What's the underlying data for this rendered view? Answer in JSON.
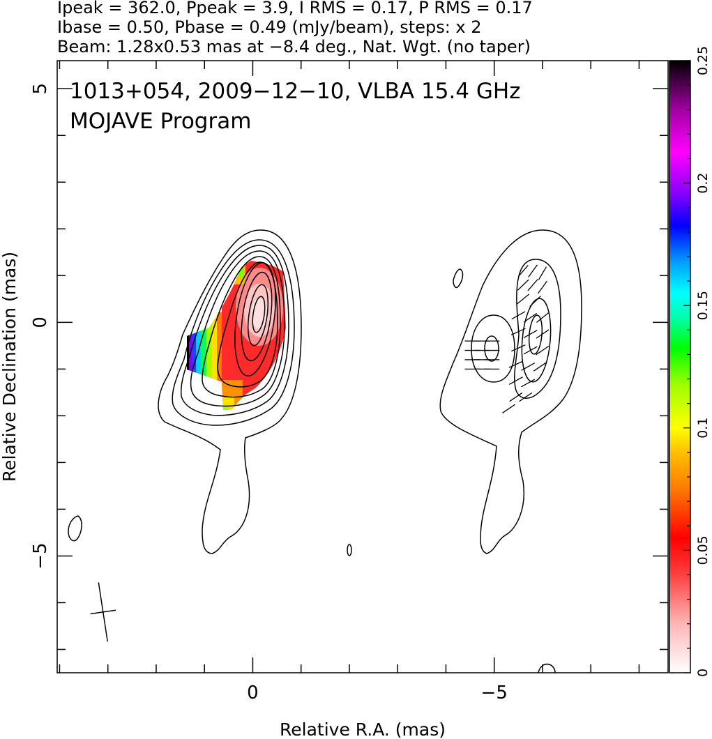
{
  "header": {
    "line1": "Ipeak = 362.0, Ppeak = 3.9, I RMS = 0.17, P RMS = 0.17",
    "line2": "Ibase = 0.50, Pbase = 0.49 (mJy/beam), steps: x 2",
    "line3": "Beam: 1.28x0.53 mas at −8.4 deg., Nat. Wgt. (no taper)"
  },
  "chart_data": {
    "type": "heatmap",
    "title": "1013+054, 2009−12−10, VLBA 15.4 GHz",
    "subtitle": "MOJAVE Program",
    "xlabel": "Relative R.A. (mas)",
    "ylabel": "Relative Declination (mas)",
    "xlim": [
      4.05,
      -8.6
    ],
    "ylim": [
      -7.5,
      5.6
    ],
    "x_ticks": [
      {
        "value": 0,
        "label": "0"
      },
      {
        "value": -5,
        "label": "−5"
      }
    ],
    "y_ticks": [
      {
        "value": 5,
        "label": "5"
      },
      {
        "value": 0,
        "label": "0"
      },
      {
        "value": -5,
        "label": "−5"
      }
    ],
    "grid": false,
    "legend": "none",
    "colorbar": {
      "range": [
        0,
        0.25
      ],
      "ticks": [
        {
          "value": 0,
          "label": "0"
        },
        {
          "value": 0.05,
          "label": "0.05"
        },
        {
          "value": 0.1,
          "label": "0.1"
        },
        {
          "value": 0.15,
          "label": "0.15"
        },
        {
          "value": 0.2,
          "label": "0.2"
        },
        {
          "value": 0.25,
          "label": "0.25"
        }
      ],
      "colors": [
        "#ffffff",
        "#ffb6b6",
        "#ff4040",
        "#ff0000",
        "#ff7a00",
        "#ffc000",
        "#ffff00",
        "#a0ff00",
        "#00ff00",
        "#00ffaa",
        "#00ffff",
        "#00a0ff",
        "#0000ff",
        "#8000ff",
        "#ff00ff",
        "#a000a0",
        "#000000"
      ]
    },
    "stokes_i_contours": {
      "base_mjy_per_beam": 0.5,
      "step_factor": 2,
      "peak_mjy_per_beam": 362.0,
      "core_center": [
        0,
        0.1
      ]
    },
    "polarized_intensity_contours": {
      "base_mjy_per_beam": 0.49,
      "peak_mjy_per_beam": 3.9
    },
    "beam": {
      "major_mas": 1.28,
      "minor_mas": 0.53,
      "pa_deg": -8.4,
      "position": [
        3.1,
        -6.2
      ]
    },
    "evpa_vectors": [
      {
        "x": -4.55,
        "y": -0.4,
        "angle_deg": 90
      },
      {
        "x": -4.75,
        "y": -0.4,
        "angle_deg": 90
      },
      {
        "x": -4.95,
        "y": -0.4,
        "angle_deg": 90
      },
      {
        "x": -4.55,
        "y": -0.6,
        "angle_deg": 90
      },
      {
        "x": -4.75,
        "y": -0.6,
        "angle_deg": 90
      },
      {
        "x": -4.95,
        "y": -0.6,
        "angle_deg": 90
      },
      {
        "x": -4.55,
        "y": -0.8,
        "angle_deg": 90
      },
      {
        "x": -4.75,
        "y": -0.8,
        "angle_deg": 90
      },
      {
        "x": -4.95,
        "y": -0.8,
        "angle_deg": 90
      },
      {
        "x": -4.55,
        "y": -1.0,
        "angle_deg": 90
      },
      {
        "x": -4.75,
        "y": -1.0,
        "angle_deg": 90
      },
      {
        "x": -4.95,
        "y": -1.0,
        "angle_deg": 90
      },
      {
        "x": -5.6,
        "y": 1.1,
        "angle_deg": 40
      },
      {
        "x": -5.8,
        "y": 1.1,
        "angle_deg": 35
      },
      {
        "x": -6.0,
        "y": 1.05,
        "angle_deg": 30
      },
      {
        "x": -5.6,
        "y": 0.8,
        "angle_deg": 45
      },
      {
        "x": -5.8,
        "y": 0.8,
        "angle_deg": 40
      },
      {
        "x": -6.0,
        "y": 0.75,
        "angle_deg": 35
      },
      {
        "x": -5.6,
        "y": 0.5,
        "angle_deg": 50
      },
      {
        "x": -5.85,
        "y": 0.45,
        "angle_deg": 45
      },
      {
        "x": -5.5,
        "y": 0.15,
        "angle_deg": 60
      },
      {
        "x": -5.75,
        "y": 0.1,
        "angle_deg": 55
      },
      {
        "x": -6.0,
        "y": 0.1,
        "angle_deg": 50
      },
      {
        "x": -5.5,
        "y": -0.2,
        "angle_deg": 65
      },
      {
        "x": -5.75,
        "y": -0.25,
        "angle_deg": 60
      },
      {
        "x": -6.0,
        "y": -0.25,
        "angle_deg": 55
      },
      {
        "x": -5.5,
        "y": -0.55,
        "angle_deg": 65
      },
      {
        "x": -5.75,
        "y": -0.6,
        "angle_deg": 60
      },
      {
        "x": -6.0,
        "y": -0.6,
        "angle_deg": 55
      },
      {
        "x": -5.45,
        "y": -0.9,
        "angle_deg": 65
      },
      {
        "x": -5.7,
        "y": -0.95,
        "angle_deg": 60
      },
      {
        "x": -5.95,
        "y": -0.95,
        "angle_deg": 55
      },
      {
        "x": -5.45,
        "y": -1.25,
        "angle_deg": 60
      },
      {
        "x": -5.7,
        "y": -1.3,
        "angle_deg": 60
      },
      {
        "x": -5.45,
        "y": -1.6,
        "angle_deg": 55
      },
      {
        "x": -5.65,
        "y": -1.6,
        "angle_deg": 55
      },
      {
        "x": -5.3,
        "y": -1.85,
        "angle_deg": 55
      }
    ]
  }
}
